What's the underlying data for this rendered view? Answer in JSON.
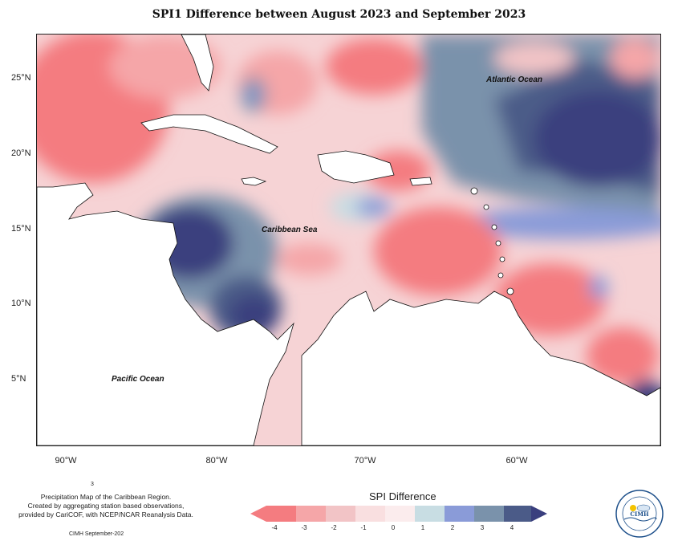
{
  "title": "SPI1 Difference between August 2023 and September 2023",
  "lat_ticks": [
    "25°N",
    "20°N",
    "15°N",
    "10°N",
    "5°N"
  ],
  "lon_ticks": [
    "90°W",
    "80°W",
    "70°W",
    "60°W"
  ],
  "ocean_labels": {
    "atlantic": "Atlantic Ocean",
    "caribbean": "Caribbean Sea",
    "pacific": "Pacific Ocean"
  },
  "caption": {
    "page_number": "3",
    "line1": "Precipitation Map of the Caribbean Region.",
    "line2": "Created by aggregating station based observations,",
    "line3": "provided by CariCOF, with NCEP/NCAR Reanalysis Data.",
    "credit": "CIMH September-202"
  },
  "legend": {
    "title": "SPI Difference",
    "ticks": [
      "-4",
      "-3",
      "-2",
      "-1",
      "0",
      "1",
      "2",
      "3",
      "4"
    ],
    "colors": [
      "#f47c80",
      "#f5a6a8",
      "#f2c4c6",
      "#f9dfe0",
      "#fbeced",
      "#c8dde3",
      "#8a9bd8",
      "#7a92ab",
      "#4b5b88",
      "#3a3f7e"
    ]
  },
  "logo": {
    "text_center": "CIMH",
    "text_ring": "Caribbean Institute for Meteorology and Hydrology"
  },
  "colors": {
    "strong_negative": "#f47c80",
    "negative": "#f5a6a8",
    "weak_negative": "#f2c4c6",
    "neutral": "#fbeced",
    "weak_positive": "#c8dde3",
    "positive": "#8a9bd8",
    "strong_positive": "#4b5b88",
    "extreme_positive": "#3a3f7e",
    "land": "#ffffff"
  }
}
